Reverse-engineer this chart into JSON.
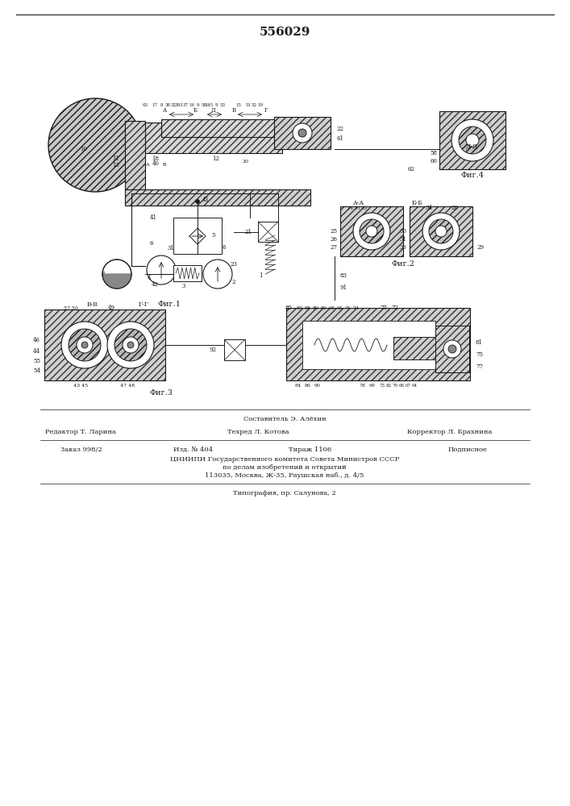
{
  "title": "556029",
  "title_fontsize": 11,
  "background_color": "#ffffff",
  "line_color": "#1a1a1a",
  "fig1_label": "Фиг.1",
  "fig2_label": "Фиг.2",
  "fig3_label": "Фиг.3",
  "fig4_label": "Фиг.4",
  "footer_line1": "Составитель Э. Алёхин",
  "footer_editor": "Редактор Т. Ларина",
  "footer_techred": "Техред Л. Котова",
  "footer_corrector": "Корректор Л. Брахнина",
  "footer_order": "Заказ 998/2",
  "footer_izd": "Изд. № 404",
  "footer_tirazh": "Тираж 1106",
  "footer_podp": "Подписное",
  "footer_org": "ЦНИИПИ Государственного комитета Совета Министров СССР",
  "footer_org2": "по делам изобретений и открытий",
  "footer_addr": "113035, Москва, Ж-35, Раушская наб., д. 4/5",
  "footer_print": "Типография, пр. Салунова, 2"
}
